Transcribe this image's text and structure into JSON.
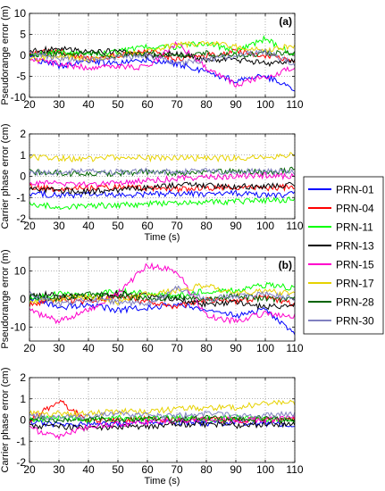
{
  "figure": {
    "legend_entries": [
      {
        "label": "PRN-01",
        "color": "#0000ff"
      },
      {
        "label": "PRN-04",
        "color": "#ff0000"
      },
      {
        "label": "PRN-11",
        "color": "#00ff00"
      },
      {
        "label": "PRN-13",
        "color": "#000000"
      },
      {
        "label": "PRN-15",
        "color": "#ff00cc"
      },
      {
        "label": "PRN-17",
        "color": "#e6d200"
      },
      {
        "label": "PRN-28",
        "color": "#006400"
      },
      {
        "label": "PRN-30",
        "color": "#8080c0"
      }
    ],
    "legend_placement": "right, between panels (a) and (b)"
  },
  "chart_data": [
    {
      "type": "line",
      "panel_label": "(a)",
      "xlabel": "",
      "ylabel": "Pseudorange error (m)",
      "xlim": [
        20,
        110
      ],
      "ylim": [
        -10,
        10
      ],
      "xticks": [
        20,
        30,
        40,
        50,
        60,
        70,
        80,
        90,
        100,
        110
      ],
      "yticks": [
        -10,
        -5,
        0,
        5,
        10
      ],
      "x": [
        20,
        30,
        40,
        50,
        60,
        70,
        80,
        90,
        100,
        110
      ],
      "grid": true,
      "series": [
        {
          "name": "PRN-01",
          "values": [
            -0.5,
            -2.5,
            -1.5,
            -2.0,
            -1.0,
            -2.0,
            -4.0,
            -6.0,
            -5.0,
            -8.0
          ]
        },
        {
          "name": "PRN-04",
          "values": [
            0.5,
            1.0,
            -1.0,
            0.0,
            1.0,
            -1.0,
            0.0,
            1.0,
            0.0,
            -1.0
          ]
        },
        {
          "name": "PRN-11",
          "values": [
            0.0,
            1.0,
            0.0,
            1.0,
            2.0,
            2.0,
            3.0,
            1.0,
            4.0,
            0.0
          ]
        },
        {
          "name": "PRN-13",
          "values": [
            1.0,
            1.5,
            1.0,
            1.0,
            0.0,
            0.5,
            -1.0,
            -1.0,
            -2.0,
            -1.0
          ]
        },
        {
          "name": "PRN-15",
          "values": [
            -1.0,
            -2.0,
            -3.0,
            -2.5,
            -3.0,
            3.0,
            -3.0,
            -7.0,
            -5.0,
            -3.0
          ]
        },
        {
          "name": "PRN-17",
          "values": [
            -1.0,
            0.0,
            -1.0,
            0.0,
            1.0,
            2.5,
            3.0,
            2.0,
            1.0,
            2.5
          ]
        },
        {
          "name": "PRN-28",
          "values": [
            0.0,
            0.5,
            0.5,
            0.0,
            0.5,
            0.0,
            0.5,
            0.0,
            0.5,
            0.5
          ]
        },
        {
          "name": "PRN-30",
          "values": [
            1.0,
            -1.0,
            -1.0,
            -0.5,
            0.0,
            -2.0,
            -1.0,
            0.0,
            1.0,
            -2.0
          ]
        }
      ]
    },
    {
      "type": "line",
      "panel_label": "",
      "xlabel": "Time (s)",
      "ylabel": "Carrier phase error (cm)",
      "xlim": [
        20,
        110
      ],
      "ylim": [
        -2,
        2
      ],
      "xticks": [
        20,
        30,
        40,
        50,
        60,
        70,
        80,
        90,
        100,
        110
      ],
      "yticks": [
        -2,
        -1,
        0,
        1,
        2
      ],
      "x": [
        20,
        30,
        40,
        50,
        60,
        70,
        80,
        90,
        100,
        110
      ],
      "grid": true,
      "series": [
        {
          "name": "PRN-01",
          "values": [
            -0.8,
            -0.9,
            -0.85,
            -0.9,
            -0.85,
            -0.8,
            -0.85,
            -0.8,
            -0.9,
            -0.85
          ]
        },
        {
          "name": "PRN-04",
          "values": [
            -0.5,
            -0.6,
            -0.55,
            -0.5,
            -0.55,
            -0.6,
            -0.55,
            -0.5,
            -0.55,
            -0.5
          ]
        },
        {
          "name": "PRN-11",
          "values": [
            -1.3,
            -1.45,
            -1.4,
            -1.35,
            -1.3,
            -1.25,
            -1.2,
            -1.2,
            -1.15,
            -1.1
          ]
        },
        {
          "name": "PRN-13",
          "values": [
            -0.6,
            -0.65,
            -0.7,
            -0.65,
            -0.55,
            -0.4,
            -0.45,
            -0.5,
            -0.45,
            -0.4
          ]
        },
        {
          "name": "PRN-15",
          "values": [
            -0.3,
            -0.35,
            -0.4,
            -0.3,
            -0.2,
            -0.1,
            -0.05,
            0.0,
            0.05,
            0.0
          ]
        },
        {
          "name": "PRN-17",
          "values": [
            0.9,
            0.85,
            0.8,
            0.9,
            0.85,
            0.9,
            0.85,
            0.85,
            0.9,
            1.05
          ]
        },
        {
          "name": "PRN-28",
          "values": [
            0.2,
            0.15,
            0.1,
            0.15,
            0.2,
            0.15,
            0.2,
            0.25,
            0.2,
            0.3
          ]
        },
        {
          "name": "PRN-30",
          "values": [
            0.15,
            0.2,
            0.25,
            0.2,
            0.25,
            0.2,
            0.25,
            0.2,
            0.25,
            0.2
          ]
        }
      ]
    },
    {
      "type": "line",
      "panel_label": "(b)",
      "xlabel": "",
      "ylabel": "Pseudorange error (m)",
      "xlim": [
        20,
        110
      ],
      "ylim": [
        -15,
        15
      ],
      "xticks": [
        20,
        30,
        40,
        50,
        60,
        70,
        80,
        90,
        100,
        110
      ],
      "yticks": [
        -10,
        0,
        10
      ],
      "x": [
        20,
        30,
        40,
        50,
        60,
        70,
        80,
        90,
        100,
        110
      ],
      "grid": true,
      "series": [
        {
          "name": "PRN-01",
          "values": [
            0.0,
            -3.0,
            -2.0,
            -4.0,
            -3.0,
            -2.0,
            -4.0,
            -6.0,
            -4.0,
            -12.0
          ]
        },
        {
          "name": "PRN-04",
          "values": [
            -2.0,
            0.0,
            -1.0,
            1.0,
            -1.0,
            -3.0,
            0.0,
            -1.0,
            1.0,
            -2.0
          ]
        },
        {
          "name": "PRN-11",
          "values": [
            0.0,
            2.0,
            1.0,
            3.0,
            2.0,
            1.0,
            3.0,
            3.0,
            5.0,
            4.0
          ]
        },
        {
          "name": "PRN-13",
          "values": [
            1.0,
            2.0,
            0.0,
            2.0,
            1.0,
            0.0,
            -2.0,
            -1.0,
            -3.0,
            -2.0
          ]
        },
        {
          "name": "PRN-15",
          "values": [
            -4.0,
            -8.0,
            -4.0,
            2.0,
            12.0,
            10.0,
            -6.0,
            -8.0,
            -5.0,
            -6.0
          ]
        },
        {
          "name": "PRN-17",
          "values": [
            -1.0,
            0.0,
            1.0,
            -1.0,
            2.0,
            3.0,
            5.0,
            2.0,
            3.0,
            2.0
          ]
        },
        {
          "name": "PRN-28",
          "values": [
            1.0,
            0.0,
            2.0,
            1.0,
            0.0,
            1.0,
            0.0,
            1.0,
            0.0,
            0.0
          ]
        },
        {
          "name": "PRN-30",
          "values": [
            2.0,
            -2.0,
            0.0,
            -1.0,
            -2.0,
            4.0,
            0.0,
            1.0,
            2.0,
            0.0
          ]
        }
      ]
    },
    {
      "type": "line",
      "panel_label": "",
      "xlabel": "Time (s)",
      "ylabel": "Carrier phase error (cm)",
      "xlim": [
        20,
        110
      ],
      "ylim": [
        -2,
        2
      ],
      "xticks": [
        20,
        30,
        40,
        50,
        60,
        70,
        80,
        90,
        100,
        110
      ],
      "yticks": [
        -2,
        -1,
        0,
        1,
        2
      ],
      "x": [
        20,
        30,
        40,
        50,
        60,
        70,
        80,
        90,
        100,
        110
      ],
      "grid": true,
      "series": [
        {
          "name": "PRN-01",
          "values": [
            -0.1,
            -0.2,
            -0.15,
            -0.2,
            -0.1,
            -0.1,
            -0.15,
            -0.1,
            -0.15,
            -0.2
          ]
        },
        {
          "name": "PRN-04",
          "values": [
            0.0,
            0.9,
            -0.05,
            0.0,
            0.05,
            0.0,
            0.05,
            0.0,
            0.0,
            0.05
          ]
        },
        {
          "name": "PRN-11",
          "values": [
            0.0,
            0.1,
            0.0,
            0.1,
            0.05,
            0.1,
            0.05,
            0.1,
            0.0,
            0.05
          ]
        },
        {
          "name": "PRN-13",
          "values": [
            -0.3,
            -0.3,
            -0.4,
            -0.3,
            -0.3,
            -0.2,
            -0.2,
            -0.25,
            -0.2,
            -0.2
          ]
        },
        {
          "name": "PRN-15",
          "values": [
            -0.4,
            -0.8,
            -0.3,
            -0.2,
            -0.1,
            0.0,
            0.0,
            0.0,
            0.0,
            0.1
          ]
        },
        {
          "name": "PRN-17",
          "values": [
            0.3,
            0.3,
            0.3,
            0.4,
            0.4,
            0.5,
            0.6,
            0.6,
            0.8,
            0.8
          ]
        },
        {
          "name": "PRN-28",
          "values": [
            0.1,
            0.0,
            0.1,
            0.0,
            0.1,
            0.0,
            0.1,
            0.0,
            0.1,
            0.0
          ]
        },
        {
          "name": "PRN-30",
          "values": [
            0.2,
            0.1,
            0.2,
            0.3,
            0.2,
            0.2,
            0.3,
            0.2,
            0.2,
            0.3
          ]
        }
      ]
    }
  ]
}
